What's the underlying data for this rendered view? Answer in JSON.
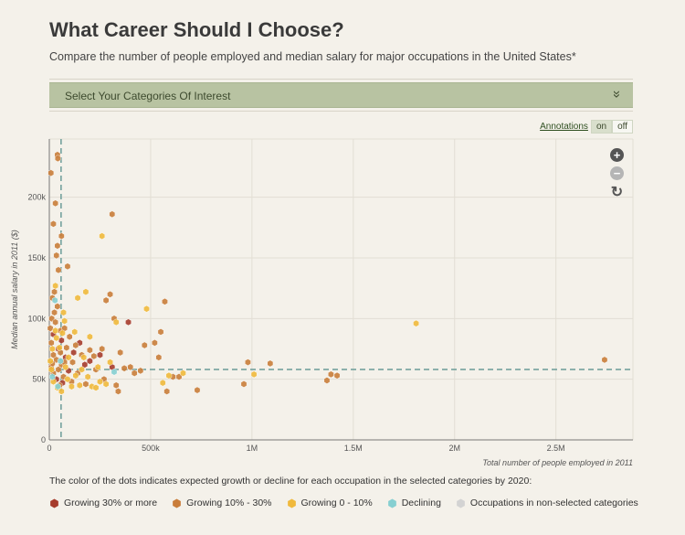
{
  "header": {
    "title": "What Career Should I Choose?",
    "subtitle": "Compare the number of people employed and median salary for major occupations in the United States*"
  },
  "category_bar": {
    "label": "Select Your Categories Of Interest",
    "chevron_icon": "double-chevron-down-icon"
  },
  "annotations": {
    "label": "Annotations",
    "on": "on",
    "off": "off",
    "state": "on"
  },
  "controls": {
    "zoom_in_icon": "plus",
    "zoom_out_icon": "minus",
    "reset_icon": "refresh"
  },
  "colors": {
    "growing_30_plus": "#a63c2c",
    "growing_10_30": "#c97d3a",
    "growing_0_10": "#f0b93c",
    "declining": "#86cfd1",
    "non_selected": "#d3d3d3",
    "reference_line": "#6b9c98"
  },
  "legend": {
    "note": "The color of the dots indicates expected growth or decline for each occupation in the selected categories by 2020:",
    "items": [
      {
        "label": "Growing 30% or more",
        "color": "#a63c2c"
      },
      {
        "label": "Growing 10% - 30%",
        "color": "#c97d3a"
      },
      {
        "label": "Growing 0 - 10%",
        "color": "#f0b93c"
      },
      {
        "label": "Declining",
        "color": "#86cfd1"
      },
      {
        "label": "Occupations in non-selected categories",
        "color": "#d3d3d3"
      }
    ]
  },
  "chart_data": {
    "type": "scatter",
    "title": "",
    "xlabel": "Total number of people employed in 2011",
    "ylabel": "Median annual salary in 2011 ($)",
    "xlim": [
      0,
      2880000
    ],
    "ylim": [
      0,
      248000
    ],
    "x_ticks": [
      {
        "value": 0,
        "label": "0"
      },
      {
        "value": 500000,
        "label": "500k"
      },
      {
        "value": 1000000,
        "label": "1M"
      },
      {
        "value": 1500000,
        "label": "1.5M"
      },
      {
        "value": 2000000,
        "label": "2M"
      },
      {
        "value": 2500000,
        "label": "2.5M"
      }
    ],
    "y_ticks": [
      {
        "value": 0,
        "label": "0"
      },
      {
        "value": 50000,
        "label": "50k"
      },
      {
        "value": 100000,
        "label": "100k"
      },
      {
        "value": 150000,
        "label": "150k"
      },
      {
        "value": 200000,
        "label": "200k"
      }
    ],
    "reference_lines": {
      "x_median": 58000,
      "y_median": 58000
    },
    "grid": true,
    "series": [
      {
        "name": "Growing 30% or more",
        "color": "#a63c2c",
        "points": [
          [
            20000,
            87000
          ],
          [
            45000,
            75000
          ],
          [
            60000,
            82000
          ],
          [
            80000,
            68000
          ],
          [
            120000,
            72000
          ],
          [
            150000,
            80000
          ],
          [
            200000,
            65000
          ],
          [
            250000,
            70000
          ],
          [
            310000,
            60000
          ],
          [
            390000,
            97000
          ],
          [
            35000,
            50000
          ],
          [
            95000,
            57000
          ],
          [
            175000,
            62000
          ],
          [
            65000,
            47000
          ]
        ]
      },
      {
        "name": "Growing 10% - 30%",
        "color": "#c97d3a",
        "points": [
          [
            8000,
            220000
          ],
          [
            40000,
            235000
          ],
          [
            42000,
            232000
          ],
          [
            30000,
            195000
          ],
          [
            20000,
            178000
          ],
          [
            60000,
            168000
          ],
          [
            40000,
            160000
          ],
          [
            35000,
            152000
          ],
          [
            90000,
            143000
          ],
          [
            45000,
            140000
          ],
          [
            25000,
            122000
          ],
          [
            15000,
            117000
          ],
          [
            40000,
            110000
          ],
          [
            12000,
            100000
          ],
          [
            30000,
            97000
          ],
          [
            55000,
            90000
          ],
          [
            75000,
            92000
          ],
          [
            100000,
            85000
          ],
          [
            130000,
            78000
          ],
          [
            160000,
            70000
          ],
          [
            200000,
            74000
          ],
          [
            220000,
            69000
          ],
          [
            260000,
            75000
          ],
          [
            300000,
            120000
          ],
          [
            310000,
            186000
          ],
          [
            320000,
            100000
          ],
          [
            280000,
            115000
          ],
          [
            350000,
            72000
          ],
          [
            370000,
            59000
          ],
          [
            400000,
            60000
          ],
          [
            420000,
            55000
          ],
          [
            450000,
            57000
          ],
          [
            470000,
            78000
          ],
          [
            520000,
            80000
          ],
          [
            540000,
            68000
          ],
          [
            550000,
            89000
          ],
          [
            570000,
            114000
          ],
          [
            580000,
            40000
          ],
          [
            610000,
            52000
          ],
          [
            640000,
            52000
          ],
          [
            730000,
            41000
          ],
          [
            960000,
            46000
          ],
          [
            980000,
            64000
          ],
          [
            1090000,
            63000
          ],
          [
            1370000,
            49000
          ],
          [
            1390000,
            54000
          ],
          [
            1420000,
            53000
          ],
          [
            2740000,
            66000
          ],
          [
            10000,
            60000
          ],
          [
            20000,
            55000
          ],
          [
            50000,
            45000
          ],
          [
            70000,
            52000
          ],
          [
            110000,
            48000
          ],
          [
            140000,
            55000
          ],
          [
            180000,
            46000
          ],
          [
            230000,
            58000
          ],
          [
            270000,
            50000
          ],
          [
            330000,
            45000
          ],
          [
            340000,
            40000
          ],
          [
            20000,
            70000
          ],
          [
            35000,
            66000
          ],
          [
            60000,
            62000
          ],
          [
            85000,
            76000
          ],
          [
            115000,
            64000
          ],
          [
            10000,
            80000
          ],
          [
            5000,
            92000
          ],
          [
            25000,
            105000
          ],
          [
            15000,
            63000
          ],
          [
            45000,
            58000
          ],
          [
            55000,
            72000
          ],
          [
            75000,
            64000
          ]
        ]
      },
      {
        "name": "Growing 0 - 10%",
        "color": "#f0b93c",
        "points": [
          [
            30000,
            127000
          ],
          [
            70000,
            105000
          ],
          [
            75000,
            98000
          ],
          [
            140000,
            117000
          ],
          [
            180000,
            122000
          ],
          [
            260000,
            168000
          ],
          [
            330000,
            97000
          ],
          [
            480000,
            108000
          ],
          [
            560000,
            47000
          ],
          [
            590000,
            53000
          ],
          [
            660000,
            55000
          ],
          [
            1010000,
            54000
          ],
          [
            1810000,
            96000
          ],
          [
            30000,
            90000
          ],
          [
            50000,
            76000
          ],
          [
            80000,
            60000
          ],
          [
            95000,
            68000
          ],
          [
            125000,
            89000
          ],
          [
            160000,
            58000
          ],
          [
            190000,
            52000
          ],
          [
            210000,
            44000
          ],
          [
            240000,
            60000
          ],
          [
            280000,
            46000
          ],
          [
            300000,
            64000
          ],
          [
            20000,
            48000
          ],
          [
            40000,
            43000
          ],
          [
            60000,
            40000
          ],
          [
            90000,
            50000
          ],
          [
            110000,
            44000
          ],
          [
            130000,
            53000
          ],
          [
            150000,
            45000
          ],
          [
            170000,
            68000
          ],
          [
            200000,
            85000
          ],
          [
            230000,
            43000
          ],
          [
            250000,
            48000
          ],
          [
            10000,
            58000
          ],
          [
            15000,
            75000
          ],
          [
            5000,
            65000
          ],
          [
            35000,
            84000
          ],
          [
            65000,
            88000
          ]
        ]
      },
      {
        "name": "Declining",
        "color": "#86cfd1",
        "points": [
          [
            28000,
            115000
          ],
          [
            42000,
            44000
          ],
          [
            320000,
            56000
          ],
          [
            15000,
            52000
          ],
          [
            55000,
            65000
          ]
        ]
      }
    ]
  }
}
